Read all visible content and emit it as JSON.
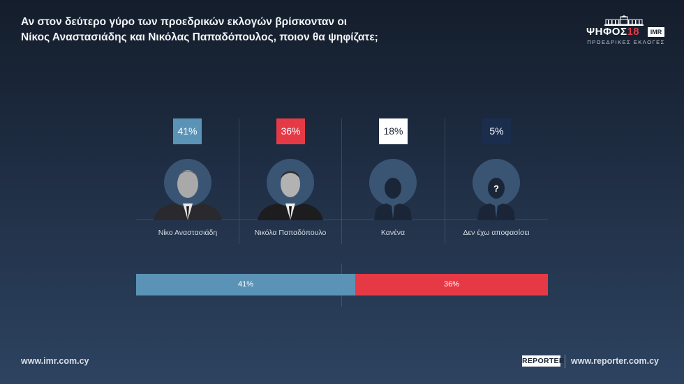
{
  "title": {
    "line1": "Αν στον δεύτερο γύρο των προεδρικών εκλογών βρίσκονταν οι",
    "line2": "Νίκος Αναστασιάδης και Νικόλας Παπαδόπουλος, ποιον θα ψηφίζατε;"
  },
  "logo": {
    "word": "ΨΗΦΟΣ",
    "number": "18",
    "imr": "IMR",
    "subtitle": "ΠΡΟΕΔΡΙΚΕΣ ΕΚΛΟΓΕΣ"
  },
  "colors": {
    "blue": "#5b93b6",
    "red": "#e63946",
    "white": "#ffffff",
    "navy": "#1b2d4c"
  },
  "chart_data": {
    "type": "bar",
    "categories": [
      "Νίκο Αναστασιάδη",
      "Νικόλα Παπαδόπουλο",
      "Κανένα",
      "Δεν έχω αποφασίσει"
    ],
    "values": [
      41,
      36,
      18,
      5
    ],
    "labels": [
      "41%",
      "36%",
      "18%",
      "5%"
    ],
    "portrait_icons": [
      "person-photo-icon",
      "person-photo-icon",
      "person-silhouette-icon",
      "person-unknown-icon"
    ],
    "unknown_mark": "?",
    "stacked_bar": {
      "type": "stacked-bar",
      "segments": [
        {
          "value": 41,
          "label": "41%"
        },
        {
          "value": 36,
          "label": "36%"
        }
      ],
      "scale_max": 77
    }
  },
  "footer": {
    "left_url": "www.imr.com.cy",
    "reporter_logo": "REPORTER",
    "right_url": "www.reporter.com.cy"
  }
}
